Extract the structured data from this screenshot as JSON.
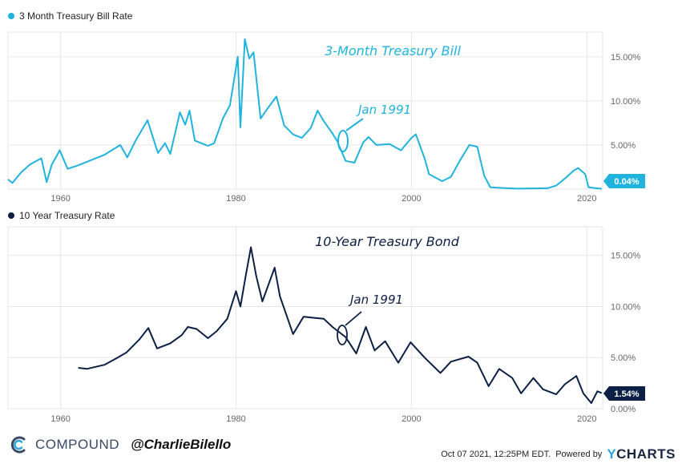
{
  "colors": {
    "bill": "#20b3dd",
    "bond": "#0c1f45",
    "grid": "#e6e6e6",
    "axis": "#666666",
    "brand": "#3a4a64"
  },
  "legend": {
    "top": "3 Month Treasury Bill Rate",
    "bottom": "10 Year Treasury Rate"
  },
  "annotations": {
    "bill_title": "3-Month Treasury Bill",
    "bond_title": "10-Year Treasury Bond",
    "jan1991": "Jan 1991"
  },
  "footer": {
    "brand": "COMPOUND",
    "handle": "@CharlieBilello",
    "timestamp": "Oct 07 2021, 12:25PM EDT.",
    "powered_by": "Powered by",
    "ycharts_y": "Y",
    "ycharts_rest": "CHARTS",
    "logo_icon": "compound-c-logo-icon"
  },
  "chart_data": [
    {
      "type": "line",
      "name": "3 Month Treasury Bill Rate",
      "xlim": [
        1954,
        2021.8
      ],
      "ylim": [
        0,
        17.8
      ],
      "x_ticks": [
        "1960",
        "1980",
        "2000",
        "2020"
      ],
      "y_ticks": [
        "5.00%",
        "10.00%",
        "15.00%"
      ],
      "last_value_label": "0.04%",
      "grid": true,
      "points": [
        [
          1954.0,
          1.1
        ],
        [
          1954.5,
          0.7
        ],
        [
          1955.5,
          1.9
        ],
        [
          1956.5,
          2.8
        ],
        [
          1957.8,
          3.5
        ],
        [
          1958.4,
          0.8
        ],
        [
          1959.0,
          2.8
        ],
        [
          1959.9,
          4.4
        ],
        [
          1960.8,
          2.3
        ],
        [
          1962.0,
          2.7
        ],
        [
          1963.5,
          3.3
        ],
        [
          1965.0,
          3.9
        ],
        [
          1966.8,
          5.0
        ],
        [
          1967.6,
          3.6
        ],
        [
          1968.5,
          5.4
        ],
        [
          1969.9,
          7.8
        ],
        [
          1971.1,
          4.1
        ],
        [
          1971.9,
          5.2
        ],
        [
          1972.5,
          4.0
        ],
        [
          1973.6,
          8.7
        ],
        [
          1974.2,
          7.3
        ],
        [
          1974.7,
          8.9
        ],
        [
          1975.3,
          5.5
        ],
        [
          1976.8,
          4.9
        ],
        [
          1977.5,
          5.2
        ],
        [
          1978.5,
          8.0
        ],
        [
          1979.3,
          9.5
        ],
        [
          1980.2,
          15.0
        ],
        [
          1980.5,
          7.0
        ],
        [
          1981.0,
          17.0
        ],
        [
          1981.5,
          14.8
        ],
        [
          1982.0,
          15.5
        ],
        [
          1982.8,
          8.0
        ],
        [
          1983.5,
          9.0
        ],
        [
          1984.6,
          10.5
        ],
        [
          1985.5,
          7.2
        ],
        [
          1986.5,
          6.2
        ],
        [
          1987.5,
          5.8
        ],
        [
          1988.5,
          6.9
        ],
        [
          1989.3,
          8.9
        ],
        [
          1990.0,
          7.7
        ],
        [
          1991.0,
          6.3
        ],
        [
          1991.5,
          5.5
        ],
        [
          1992.5,
          3.2
        ],
        [
          1993.5,
          3.0
        ],
        [
          1994.5,
          5.3
        ],
        [
          1995.1,
          5.9
        ],
        [
          1996.0,
          5.0
        ],
        [
          1997.5,
          5.1
        ],
        [
          1998.8,
          4.4
        ],
        [
          2000.0,
          5.8
        ],
        [
          2000.5,
          6.2
        ],
        [
          2001.5,
          3.5
        ],
        [
          2002.0,
          1.7
        ],
        [
          2003.5,
          0.9
        ],
        [
          2004.5,
          1.4
        ],
        [
          2005.5,
          3.2
        ],
        [
          2006.6,
          5.0
        ],
        [
          2007.5,
          4.8
        ],
        [
          2008.3,
          1.5
        ],
        [
          2009.0,
          0.2
        ],
        [
          2012.0,
          0.05
        ],
        [
          2015.5,
          0.1
        ],
        [
          2016.5,
          0.4
        ],
        [
          2017.5,
          1.2
        ],
        [
          2018.5,
          2.1
        ],
        [
          2019.0,
          2.4
        ],
        [
          2019.8,
          1.7
        ],
        [
          2020.2,
          0.2
        ],
        [
          2021.7,
          0.04
        ]
      ]
    },
    {
      "type": "line",
      "name": "10 Year Treasury Rate",
      "xlim": [
        1954,
        2021.8
      ],
      "ylim": [
        0,
        17.8
      ],
      "x_ticks": [
        "1960",
        "1980",
        "2000",
        "2020"
      ],
      "y_ticks": [
        "0.00%",
        "5.00%",
        "10.00%",
        "15.00%"
      ],
      "last_value_label": "1.54%",
      "grid": true,
      "points": [
        [
          1962.0,
          4.0
        ],
        [
          1963.0,
          3.9
        ],
        [
          1965.0,
          4.3
        ],
        [
          1966.5,
          5.0
        ],
        [
          1967.5,
          5.5
        ],
        [
          1969.0,
          6.8
        ],
        [
          1970.0,
          7.9
        ],
        [
          1971.0,
          5.9
        ],
        [
          1972.5,
          6.4
        ],
        [
          1973.8,
          7.2
        ],
        [
          1974.5,
          8.0
        ],
        [
          1975.5,
          7.8
        ],
        [
          1976.8,
          6.9
        ],
        [
          1977.8,
          7.6
        ],
        [
          1979.0,
          8.8
        ],
        [
          1980.0,
          11.5
        ],
        [
          1980.5,
          10.0
        ],
        [
          1981.1,
          13.0
        ],
        [
          1981.7,
          15.8
        ],
        [
          1982.3,
          13.0
        ],
        [
          1983.0,
          10.5
        ],
        [
          1984.4,
          13.8
        ],
        [
          1985.0,
          11.0
        ],
        [
          1986.5,
          7.3
        ],
        [
          1987.7,
          9.0
        ],
        [
          1988.8,
          8.9
        ],
        [
          1990.0,
          8.8
        ],
        [
          1991.0,
          8.0
        ],
        [
          1992.5,
          7.0
        ],
        [
          1993.7,
          5.4
        ],
        [
          1994.8,
          8.0
        ],
        [
          1995.8,
          5.7
        ],
        [
          1997.0,
          6.6
        ],
        [
          1998.5,
          4.5
        ],
        [
          1999.9,
          6.5
        ],
        [
          2001.5,
          5.0
        ],
        [
          2003.3,
          3.5
        ],
        [
          2004.5,
          4.6
        ],
        [
          2006.5,
          5.1
        ],
        [
          2007.5,
          4.5
        ],
        [
          2008.8,
          2.2
        ],
        [
          2010.0,
          3.9
        ],
        [
          2011.5,
          3.0
        ],
        [
          2012.5,
          1.5
        ],
        [
          2013.9,
          3.0
        ],
        [
          2015.0,
          1.9
        ],
        [
          2016.5,
          1.4
        ],
        [
          2017.5,
          2.4
        ],
        [
          2018.8,
          3.2
        ],
        [
          2019.6,
          1.5
        ],
        [
          2020.5,
          0.55
        ],
        [
          2021.2,
          1.7
        ],
        [
          2021.7,
          1.54
        ]
      ]
    }
  ]
}
